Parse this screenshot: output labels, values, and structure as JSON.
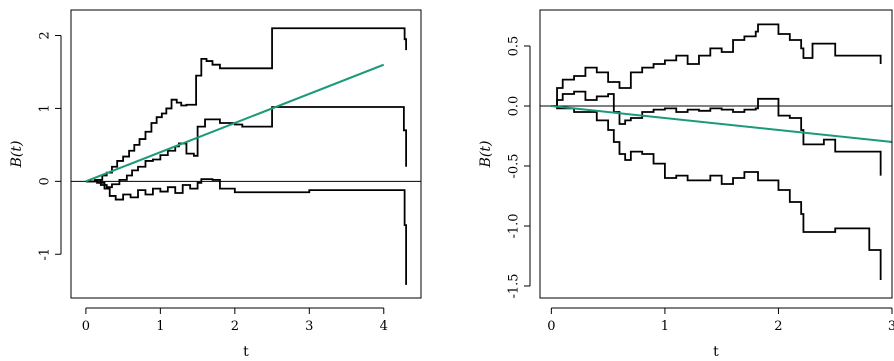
{
  "chart_data": [
    {
      "type": "line",
      "xlabel": "t",
      "ylabel": "B(t)",
      "xlim": [
        -0.2,
        4.5
      ],
      "ylim": [
        -1.6,
        2.35
      ],
      "xticks": [
        "0",
        "1",
        "2",
        "3",
        "4"
      ],
      "yticks": [
        "-1",
        "0",
        "1",
        "2"
      ],
      "reference_line": 0,
      "trend": {
        "color": "#1a9a78",
        "x": [
          0,
          4
        ],
        "y": [
          0,
          1.6
        ]
      },
      "series": [
        {
          "x": [
            0,
            0.12,
            0.22,
            0.28,
            0.35,
            0.42,
            0.5,
            0.58,
            0.65,
            0.72,
            0.8,
            0.88,
            0.95,
            1.02,
            1.08,
            1.15,
            1.22,
            1.28,
            1.35,
            1.42,
            1.48,
            1.55,
            1.62,
            1.7,
            1.8,
            2.0,
            2.5,
            2.6,
            3.0,
            3.6,
            4.0,
            4.25,
            4.28,
            4.3
          ],
          "y": [
            0,
            0.02,
            0.08,
            0.12,
            0.2,
            0.28,
            0.34,
            0.42,
            0.5,
            0.58,
            0.68,
            0.8,
            0.88,
            0.93,
            1.0,
            1.12,
            1.08,
            1.04,
            1.05,
            1.05,
            1.45,
            1.68,
            1.65,
            1.6,
            1.55,
            1.55,
            2.1,
            2.1,
            2.1,
            2.1,
            2.1,
            2.1,
            1.95,
            1.8
          ]
        },
        {
          "x": [
            0,
            0.15,
            0.2,
            0.28,
            0.35,
            0.45,
            0.55,
            0.62,
            0.7,
            0.8,
            0.9,
            1.0,
            1.1,
            1.2,
            1.25,
            1.35,
            1.45,
            1.5,
            1.6,
            1.8,
            2.0,
            2.1,
            2.5,
            2.55,
            3.0,
            3.5,
            4.0,
            4.25,
            4.27,
            4.3
          ],
          "y": [
            0,
            0.02,
            -0.05,
            -0.08,
            -0.04,
            0.02,
            0.08,
            0.15,
            0.2,
            0.28,
            0.3,
            0.36,
            0.42,
            0.48,
            0.52,
            0.38,
            0.35,
            0.75,
            0.85,
            0.8,
            0.78,
            0.75,
            1.02,
            1.02,
            1.02,
            1.02,
            1.02,
            1.02,
            0.7,
            0.2
          ]
        },
        {
          "x": [
            0,
            0.15,
            0.25,
            0.32,
            0.4,
            0.5,
            0.6,
            0.7,
            0.8,
            0.9,
            1.0,
            1.1,
            1.2,
            1.3,
            1.4,
            1.5,
            1.55,
            1.7,
            1.8,
            2.0,
            2.5,
            3.0,
            3.5,
            4.0,
            4.25,
            4.28,
            4.3
          ],
          "y": [
            0,
            -0.02,
            -0.1,
            -0.2,
            -0.25,
            -0.18,
            -0.22,
            -0.12,
            -0.18,
            -0.1,
            -0.14,
            -0.08,
            -0.16,
            -0.05,
            -0.1,
            -0.02,
            0.03,
            0.02,
            -0.1,
            -0.15,
            -0.15,
            -0.12,
            -0.12,
            -0.12,
            -0.12,
            -0.6,
            -1.42
          ]
        }
      ]
    },
    {
      "type": "line",
      "xlabel": "t",
      "ylabel": "B(t)",
      "xlim": [
        -0.1,
        3.0
      ],
      "ylim": [
        -1.6,
        0.8
      ],
      "xticks": [
        "0",
        "1",
        "2",
        "3"
      ],
      "yticks": [
        "-1.5",
        "-1.0",
        "-0.5",
        "0.0",
        "0.5"
      ],
      "reference_line": 0,
      "trend": {
        "color": "#1a9a78",
        "x": [
          0,
          3.0
        ],
        "y": [
          0,
          -0.3
        ]
      },
      "series": [
        {
          "x": [
            0,
            0.05,
            0.1,
            0.2,
            0.3,
            0.4,
            0.5,
            0.6,
            0.7,
            0.8,
            0.9,
            1.0,
            1.1,
            1.2,
            1.3,
            1.4,
            1.5,
            1.6,
            1.7,
            1.8,
            1.82,
            2.0,
            2.1,
            2.2,
            2.22,
            2.3,
            2.5,
            2.8,
            2.9
          ],
          "y": [
            0,
            0.15,
            0.22,
            0.25,
            0.32,
            0.28,
            0.2,
            0.15,
            0.28,
            0.32,
            0.35,
            0.38,
            0.42,
            0.35,
            0.42,
            0.48,
            0.45,
            0.55,
            0.58,
            0.62,
            0.68,
            0.6,
            0.55,
            0.48,
            0.4,
            0.52,
            0.42,
            0.42,
            0.35
          ]
        },
        {
          "x": [
            0,
            0.05,
            0.1,
            0.2,
            0.3,
            0.4,
            0.5,
            0.55,
            0.6,
            0.65,
            0.7,
            0.8,
            0.9,
            1.0,
            1.1,
            1.2,
            1.3,
            1.4,
            1.5,
            1.6,
            1.7,
            1.8,
            1.82,
            2.0,
            2.1,
            2.2,
            2.22,
            2.4,
            2.5,
            2.8,
            2.9
          ],
          "y": [
            0,
            0.05,
            0.1,
            0.12,
            0.05,
            0.08,
            0.1,
            -0.05,
            -0.15,
            -0.12,
            -0.1,
            -0.05,
            -0.03,
            -0.02,
            -0.05,
            -0.03,
            -0.04,
            -0.02,
            -0.03,
            -0.05,
            -0.03,
            -0.02,
            0.06,
            -0.08,
            -0.1,
            -0.2,
            -0.32,
            -0.28,
            -0.38,
            -0.38,
            -0.58
          ]
        },
        {
          "x": [
            0,
            0.05,
            0.1,
            0.2,
            0.3,
            0.4,
            0.5,
            0.55,
            0.6,
            0.65,
            0.7,
            0.8,
            0.9,
            1.0,
            1.1,
            1.2,
            1.3,
            1.4,
            1.5,
            1.6,
            1.7,
            1.8,
            1.82,
            2.0,
            2.1,
            2.2,
            2.22,
            2.5,
            2.8,
            2.9
          ],
          "y": [
            0,
            -0.02,
            -0.02,
            -0.05,
            -0.05,
            -0.12,
            -0.2,
            -0.3,
            -0.4,
            -0.45,
            -0.38,
            -0.4,
            -0.48,
            -0.6,
            -0.58,
            -0.62,
            -0.62,
            -0.58,
            -0.65,
            -0.6,
            -0.55,
            -0.55,
            -0.62,
            -0.7,
            -0.8,
            -0.9,
            -1.05,
            -1.02,
            -1.2,
            -1.45
          ]
        }
      ]
    }
  ]
}
